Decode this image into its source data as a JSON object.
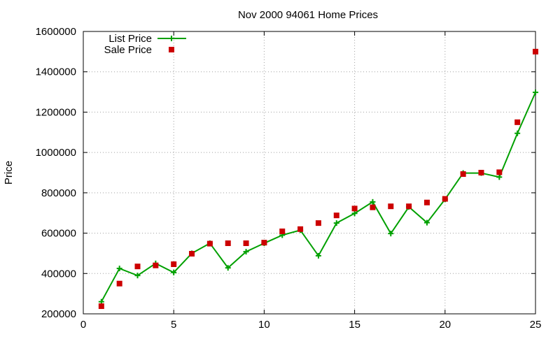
{
  "chart_data": {
    "type": "line",
    "title": "Nov 2000 94061 Home Prices",
    "xlabel": "",
    "ylabel": "Price",
    "xlim": [
      0,
      25
    ],
    "ylim": [
      200000,
      1600000
    ],
    "x_ticks": [
      0,
      5,
      10,
      15,
      20,
      25
    ],
    "y_ticks": [
      200000,
      400000,
      600000,
      800000,
      1000000,
      1200000,
      1400000,
      1600000
    ],
    "grid": true,
    "legend_position": "top-left",
    "series": [
      {
        "name": "List Price",
        "style": "line-with-plus-markers",
        "color": "#00a000",
        "x": [
          1,
          2,
          3,
          4,
          5,
          6,
          7,
          8,
          9,
          10,
          11,
          12,
          13,
          14,
          15,
          16,
          17,
          18,
          19,
          20,
          21,
          22,
          23,
          24,
          25
        ],
        "y": [
          260000,
          425000,
          390000,
          450000,
          405000,
          500000,
          550000,
          428000,
          508000,
          550000,
          590000,
          615000,
          488000,
          650000,
          698000,
          755000,
          598000,
          730000,
          652000,
          768000,
          898000,
          898000,
          878000,
          1095000,
          1298000
        ]
      },
      {
        "name": "Sale Price",
        "style": "square-markers",
        "color": "#cc0000",
        "x": [
          1,
          2,
          3,
          4,
          5,
          6,
          7,
          8,
          9,
          10,
          11,
          12,
          13,
          14,
          15,
          16,
          17,
          18,
          19,
          20,
          21,
          22,
          23,
          24,
          25
        ],
        "y": [
          238000,
          350000,
          435000,
          440000,
          446000,
          498000,
          548000,
          550000,
          550000,
          553000,
          609000,
          620000,
          650000,
          688000,
          722000,
          728000,
          733000,
          733000,
          752000,
          770000,
          893000,
          900000,
          902000,
          1150000,
          1500000
        ]
      }
    ]
  }
}
